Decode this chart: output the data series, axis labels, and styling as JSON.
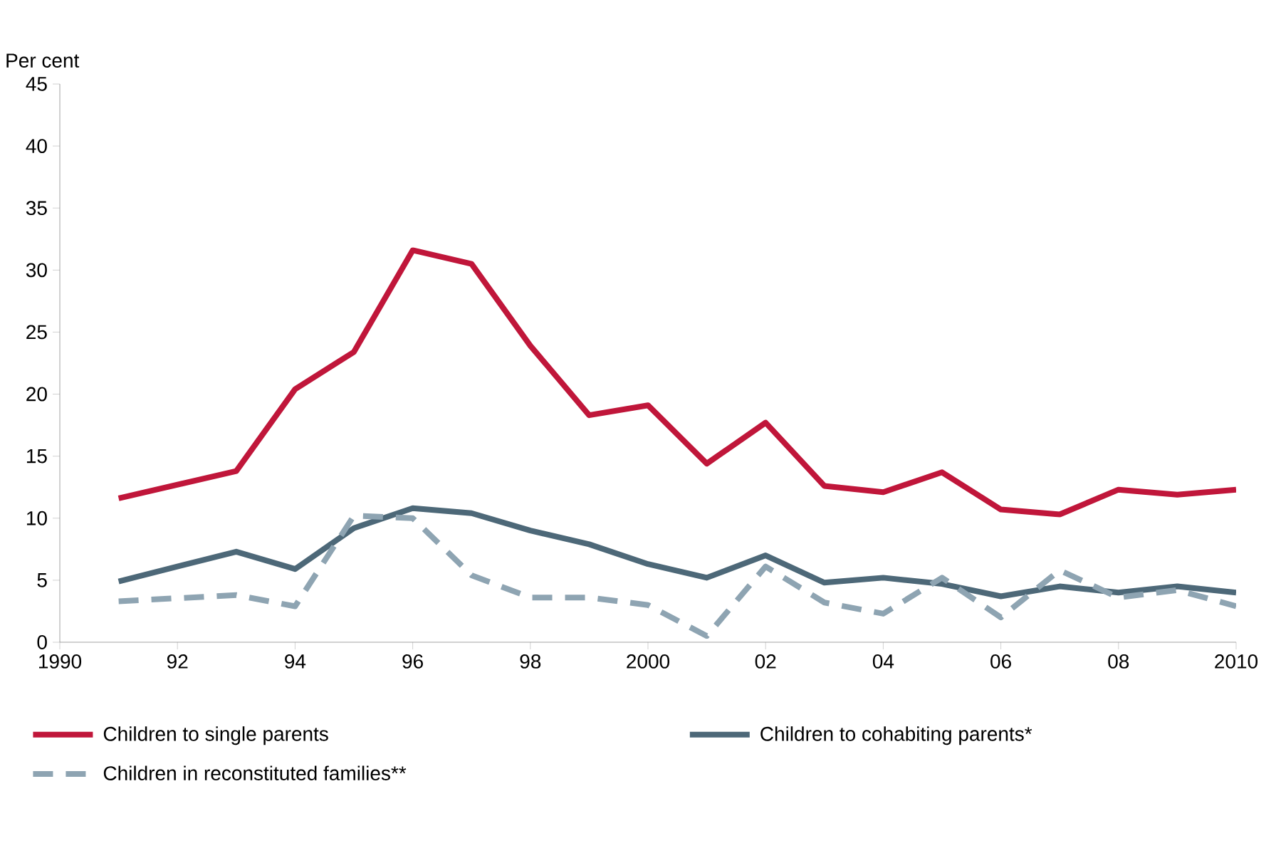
{
  "chart_data": {
    "type": "line",
    "ylabel": "Per cent",
    "xlim": [
      1990,
      2010
    ],
    "ylim": [
      0,
      45
    ],
    "xticks": [
      1990,
      {
        "value": 1992,
        "label": "92"
      },
      {
        "value": 1994,
        "label": "94"
      },
      {
        "value": 1996,
        "label": "96"
      },
      {
        "value": 1998,
        "label": "98"
      },
      2000,
      {
        "value": 2002,
        "label": "02"
      },
      {
        "value": 2004,
        "label": "04"
      },
      {
        "value": 2006,
        "label": "06"
      },
      {
        "value": 2008,
        "label": "08"
      },
      2010
    ],
    "yticks": [
      0,
      5,
      10,
      15,
      20,
      25,
      30,
      35,
      40,
      45
    ],
    "x": [
      1991,
      1993,
      1994,
      1995,
      1996,
      1997,
      1998,
      1999,
      2000,
      2001,
      2002,
      2003,
      2004,
      2005,
      2006,
      2007,
      2008,
      2009,
      2010
    ],
    "series": [
      {
        "name": "Children to single parents",
        "color": "#c0163a",
        "line_style": "solid",
        "values": [
          11.6,
          13.8,
          20.4,
          23.4,
          31.6,
          30.5,
          23.9,
          18.3,
          19.1,
          14.4,
          17.7,
          12.6,
          12.1,
          13.7,
          10.7,
          10.3,
          12.3,
          11.9,
          12.3
        ]
      },
      {
        "name": "Children to cohabiting parents*",
        "color": "#4d6878",
        "line_style": "solid",
        "values": [
          4.9,
          7.3,
          5.9,
          9.2,
          10.8,
          10.4,
          9.0,
          7.9,
          6.3,
          5.2,
          7.0,
          4.8,
          5.2,
          4.7,
          3.7,
          4.5,
          4.0,
          4.5,
          4.0
        ]
      },
      {
        "name": "Children in reconstituted families**",
        "color": "#8ea4b2",
        "line_style": "dashed",
        "values": [
          3.3,
          3.8,
          2.9,
          10.2,
          10.0,
          5.4,
          3.6,
          3.6,
          3.0,
          0.5,
          6.1,
          3.2,
          2.3,
          5.2,
          2.0,
          5.8,
          3.6,
          4.2,
          2.9
        ]
      }
    ],
    "grid": false,
    "legend": "bottom"
  }
}
